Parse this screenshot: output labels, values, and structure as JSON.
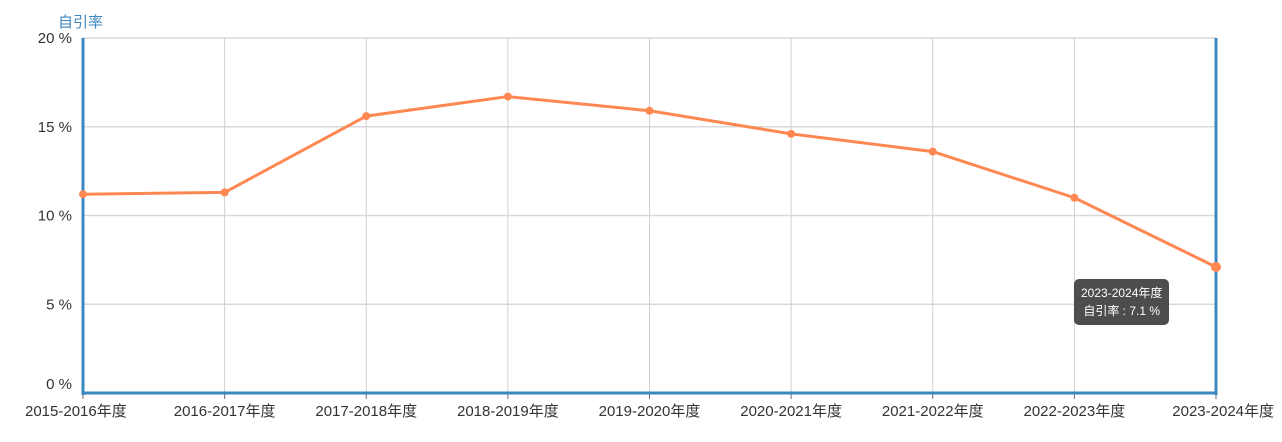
{
  "chart_data": {
    "type": "line",
    "title": "",
    "ylabel": "自引率",
    "xlabel": "",
    "ylim": [
      0,
      20
    ],
    "y_ticks": [
      "0 %",
      "5 %",
      "10 %",
      "15 %",
      "20 %"
    ],
    "y_tick_values": [
      0,
      5,
      10,
      15,
      20
    ],
    "categories": [
      "2015-2016年度",
      "2016-2017年度",
      "2017-2018年度",
      "2018-2019年度",
      "2019-2020年度",
      "2020-2021年度",
      "2021-2022年度",
      "2022-2023年度",
      "2023-2024年度"
    ],
    "series": [
      {
        "name": "自引率",
        "values": [
          11.2,
          11.3,
          15.6,
          16.7,
          15.9,
          14.6,
          13.6,
          11.0,
          7.1
        ],
        "color": "#ff8752"
      }
    ],
    "grid": true,
    "axis_color": "#3d87c0"
  },
  "tooltip": {
    "title": "2023-2024年度",
    "label": "自引率",
    "value": "7.1 %"
  }
}
